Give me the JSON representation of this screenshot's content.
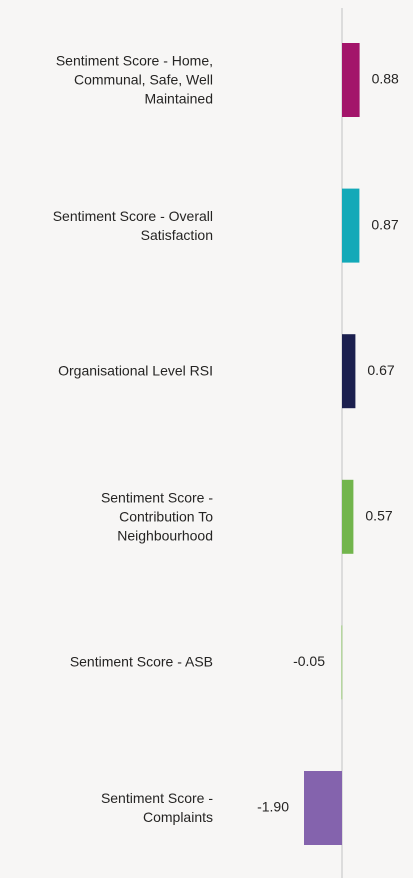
{
  "chart_data": {
    "type": "hbar",
    "categories": [
      "Sentiment Score - Home, Communal, Safe, Well Maintained",
      "Sentiment Score - Overall Satisfaction",
      "Organisational Level RSI",
      "Sentiment Score - Contribution To Neighbourhood",
      "Sentiment Score - ASB",
      "Sentiment Score - Complaints"
    ],
    "values": [
      0.88,
      0.87,
      0.67,
      0.57,
      -0.05,
      -1.9
    ],
    "value_labels": [
      "0.88",
      "0.87",
      "0.67",
      "0.57",
      "-0.05",
      "-1.90"
    ],
    "colors": [
      "#a3156a",
      "#13a9b8",
      "#1b1f4e",
      "#72b54c",
      "#b6d6a0",
      "#8463ad"
    ],
    "xlim": [
      -5.6,
      3.4
    ]
  }
}
